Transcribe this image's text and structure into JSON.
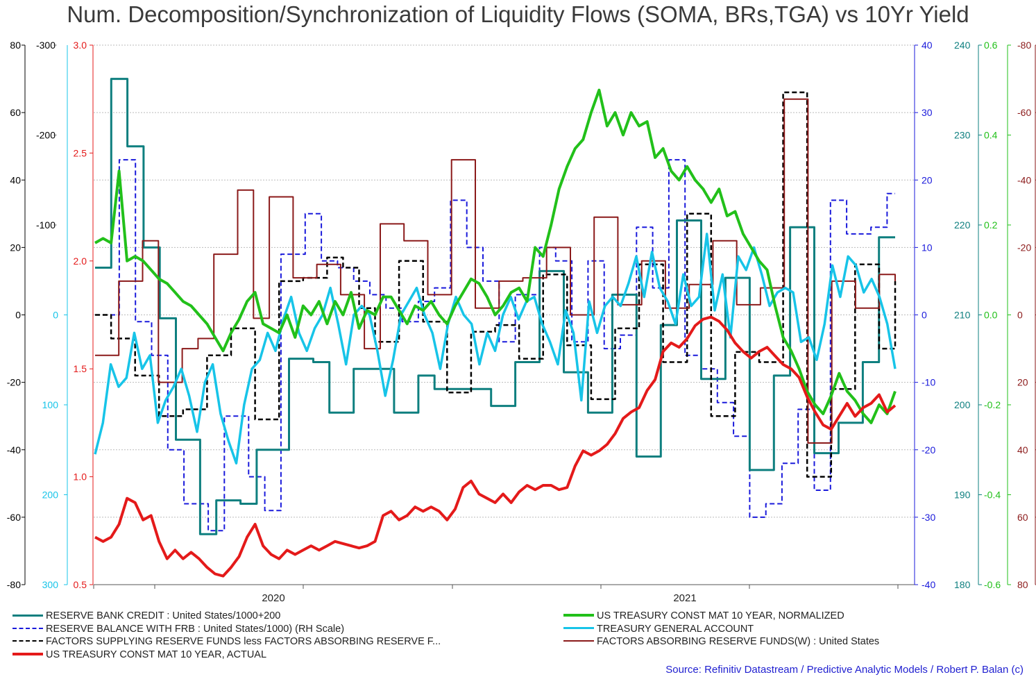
{
  "chart_data": {
    "type": "line",
    "title": "Num. Decomposition/Synchronization of Liquidity Flows (SOMA, BRs,TGA) vs 10Yr Yield",
    "source": "Source: Refinitiv Datastream / Predictive Analytic Models / Robert P. Balan (c)",
    "x_tick_labels": [
      "2020",
      "2021"
    ],
    "x_range_weeks": [
      0,
      100
    ],
    "gridlines": "horizontal dotted",
    "legend_placement": "bottom",
    "axes": [
      {
        "id": "ax_black",
        "side": "left",
        "color": "#000000",
        "min": -80,
        "max": 80,
        "ticks": [
          -80,
          -60,
          -40,
          -20,
          0,
          20,
          40,
          60,
          80
        ],
        "labels": [
          "-80",
          "-60",
          "-40",
          "-20",
          "0",
          "20",
          "40",
          "60",
          "80"
        ]
      },
      {
        "id": "ax_gray",
        "side": "left",
        "color": "#000000",
        "min": -300,
        "max": 300,
        "inverted": true,
        "ticks": [
          -300,
          -200,
          -100
        ],
        "labels": [
          "-300",
          "-200",
          "-100"
        ]
      },
      {
        "id": "ax_cyan",
        "side": "left",
        "color": "#17c4e8",
        "min": -300,
        "max": 300,
        "inverted": true,
        "ticks": [
          0,
          100,
          200,
          300
        ],
        "labels": [
          "0",
          "100",
          "200",
          "300"
        ]
      },
      {
        "id": "ax_red",
        "side": "left",
        "color": "#e41a1a",
        "min": 0.5,
        "max": 3.0,
        "ticks": [
          0.5,
          1.0,
          1.5,
          2.0,
          2.5,
          3.0
        ],
        "labels": [
          "0.5",
          "1.0",
          "1.5",
          "2.0",
          "2.5",
          "3.0"
        ]
      },
      {
        "id": "ax_blue",
        "side": "right",
        "color": "#1a1adb",
        "min": -40,
        "max": 40,
        "ticks": [
          -40,
          -30,
          -20,
          -10,
          0,
          10,
          20,
          30,
          40
        ],
        "labels": [
          "-40",
          "-30",
          "-20",
          "-10",
          "0",
          "10",
          "20",
          "30",
          "40"
        ]
      },
      {
        "id": "ax_teal",
        "side": "right",
        "color": "#0e7f7f",
        "min": 180,
        "max": 240,
        "ticks": [
          180,
          190,
          200,
          210,
          220,
          230,
          240
        ],
        "labels": [
          "180",
          "190",
          "200",
          "210",
          "220",
          "230",
          "240"
        ]
      },
      {
        "id": "ax_green",
        "side": "right",
        "color": "#22c01a",
        "min": -0.6,
        "max": 0.6,
        "ticks": [
          -0.6,
          -0.4,
          -0.2,
          0.0,
          0.2,
          0.4,
          0.6
        ],
        "labels": [
          "-0.6",
          "-0.4",
          "-0.2",
          "0.0",
          "0.2",
          "0.4",
          "0.6"
        ]
      },
      {
        "id": "ax_maroon",
        "side": "right",
        "color": "#8b1a1a",
        "min": -80,
        "max": 80,
        "inverted": true,
        "ticks": [
          -80,
          -60,
          -40,
          -20,
          0,
          20,
          40,
          60,
          80
        ],
        "labels": [
          "-80",
          "-60",
          "-40",
          "-20",
          "0",
          "20",
          "40",
          "60",
          "80"
        ]
      }
    ],
    "series": [
      {
        "name": "RESERVE BANK CREDIT : United States/1000+200",
        "axis": "ax_black",
        "color": "#0e7f7f",
        "style": "solid",
        "width": 3,
        "step": true,
        "values": [
          14,
          14,
          70,
          70,
          50,
          50,
          20,
          20,
          -1,
          -1,
          -37,
          -37,
          -37,
          -65,
          -65,
          -55,
          -55,
          -55,
          -56,
          -56,
          -40,
          -40,
          -40,
          -40,
          -13,
          -13,
          -13,
          -14,
          -14,
          -29,
          -29,
          -29,
          -16,
          -16,
          -16,
          -16,
          -16,
          -29,
          -29,
          -29,
          -18,
          -18,
          -22,
          -22,
          -22,
          -22,
          -22,
          -22,
          -22,
          -27,
          -27,
          -27,
          -14,
          -14,
          -14,
          13,
          13,
          13,
          -17,
          -17,
          -17,
          -29,
          -29,
          -29,
          6,
          6,
          6,
          -42,
          -42,
          -42,
          -3,
          -3,
          28,
          28,
          28,
          -19,
          -19,
          -19,
          11,
          11,
          11,
          -46,
          -46,
          -46,
          -18,
          -18,
          26,
          26,
          26,
          -41,
          -41,
          -41,
          -32,
          -32,
          -32,
          -14,
          -14,
          23,
          23,
          23
        ]
      },
      {
        "name": "RESERVE BALANCE WITH FRB : United States/1000) (RH Scale)",
        "axis": "ax_blue",
        "color": "#1a1adb",
        "style": "dashed",
        "width": 2,
        "step": true,
        "values": [
          0,
          0,
          0,
          23,
          23,
          -1,
          -1,
          -6,
          -6,
          -20,
          -20,
          -28,
          -28,
          -28,
          -32,
          -32,
          -15,
          -15,
          -15,
          -24,
          -24,
          -29,
          -29,
          9,
          9,
          9,
          15,
          15,
          8,
          8,
          7,
          7,
          5,
          5,
          3,
          3,
          1,
          1,
          -1,
          -1,
          2,
          2,
          4,
          4,
          17,
          17,
          10,
          10,
          5,
          5,
          -4,
          -4,
          3,
          3,
          3,
          10,
          10,
          8,
          8,
          -4,
          -4,
          8,
          8,
          -5,
          -5,
          -3,
          -3,
          13,
          13,
          4,
          4,
          23,
          23,
          -6,
          -6,
          -8,
          -8,
          -13,
          -13,
          -18,
          -18,
          -30,
          -30,
          -28,
          -28,
          -22,
          -22,
          -14,
          -14,
          -26,
          -26,
          17,
          17,
          12,
          12,
          12,
          13,
          13,
          18,
          18
        ]
      },
      {
        "name": "FACTORS SUPPLYING RESERVE FUNDS less FACTORS ABSORBING RESERVE F...",
        "axis": "ax_black",
        "color": "#000000",
        "style": "dashed",
        "width": 2.5,
        "step": true,
        "values": [
          0,
          0,
          -7,
          -7,
          -7,
          -18,
          -18,
          -18,
          -30,
          -30,
          -30,
          -28,
          -28,
          -28,
          -12,
          -12,
          -12,
          -4,
          -4,
          -4,
          -31,
          -31,
          -31,
          10,
          10,
          10,
          11,
          11,
          11,
          17,
          17,
          14,
          14,
          2,
          2,
          -8,
          -8,
          -8,
          16,
          16,
          16,
          -2,
          -2,
          -2,
          -23,
          -23,
          -23,
          -5,
          -5,
          -5,
          -3,
          -3,
          -3,
          -13,
          -13,
          -13,
          12,
          12,
          12,
          -9,
          -9,
          -9,
          -25,
          -25,
          -25,
          -4,
          -4,
          -4,
          15,
          15,
          15,
          -14,
          -14,
          -14,
          30,
          30,
          30,
          -30,
          -30,
          -30,
          -11,
          -11,
          -11,
          -14,
          -14,
          -14,
          66,
          66,
          66,
          -48,
          -48,
          -48,
          -22,
          -22,
          -22,
          15,
          15,
          15,
          -10,
          -10,
          10
        ]
      },
      {
        "name": "US TREASURY CONST MAT 10 YEAR, ACTUAL",
        "axis": "ax_red",
        "color": "#e41a1a",
        "style": "solid",
        "width": 4,
        "values": [
          0.72,
          0.7,
          0.72,
          0.78,
          0.9,
          0.88,
          0.8,
          0.82,
          0.7,
          0.62,
          0.66,
          0.62,
          0.65,
          0.62,
          0.58,
          0.55,
          0.54,
          0.58,
          0.63,
          0.72,
          0.78,
          0.68,
          0.64,
          0.62,
          0.66,
          0.64,
          0.66,
          0.68,
          0.66,
          0.68,
          0.7,
          0.69,
          0.68,
          0.67,
          0.68,
          0.7,
          0.82,
          0.84,
          0.8,
          0.82,
          0.86,
          0.84,
          0.86,
          0.84,
          0.8,
          0.85,
          0.95,
          0.98,
          0.92,
          0.9,
          0.88,
          0.92,
          0.88,
          0.93,
          0.96,
          0.94,
          0.96,
          0.96,
          0.94,
          0.95,
          1.05,
          1.12,
          1.1,
          1.12,
          1.15,
          1.2,
          1.27,
          1.3,
          1.32,
          1.4,
          1.45,
          1.58,
          1.62,
          1.6,
          1.64,
          1.7,
          1.73,
          1.74,
          1.72,
          1.68,
          1.62,
          1.58,
          1.55,
          1.58,
          1.6,
          1.56,
          1.52,
          1.5,
          1.46,
          1.37,
          1.3,
          1.24,
          1.22,
          1.28,
          1.34,
          1.28,
          1.32,
          1.34,
          1.38,
          1.3,
          1.33
        ]
      },
      {
        "name": "US TREASURY CONST MAT 10 YEAR, NORMALIZED",
        "axis": "ax_green",
        "color": "#22c01a",
        "style": "solid",
        "width": 4,
        "values": [
          0.16,
          0.17,
          0.16,
          0.32,
          0.12,
          0.13,
          0.12,
          0.1,
          0.08,
          0.07,
          0.05,
          0.03,
          0.02,
          0.0,
          -0.02,
          -0.05,
          -0.08,
          -0.04,
          -0.01,
          0.03,
          0.05,
          -0.02,
          -0.03,
          -0.04,
          0.0,
          -0.05,
          0.02,
          0.0,
          0.03,
          -0.02,
          0.03,
          0.0,
          0.05,
          -0.03,
          0.01,
          0.0,
          0.04,
          0.04,
          0.01,
          -0.02,
          0.02,
          0.01,
          0.03,
          0.0,
          -0.02,
          0.02,
          0.05,
          0.08,
          0.07,
          0.04,
          0.0,
          0.02,
          0.05,
          0.06,
          0.03,
          0.15,
          0.13,
          0.2,
          0.28,
          0.33,
          0.37,
          0.39,
          0.45,
          0.5,
          0.42,
          0.45,
          0.4,
          0.45,
          0.42,
          0.43,
          0.35,
          0.37,
          0.32,
          0.3,
          0.33,
          0.3,
          0.28,
          0.25,
          0.28,
          0.22,
          0.23,
          0.18,
          0.15,
          0.12,
          0.1,
          0.02,
          -0.05,
          -0.08,
          -0.12,
          -0.17,
          -0.2,
          -0.22,
          -0.18,
          -0.13,
          -0.17,
          -0.19,
          -0.22,
          -0.24,
          -0.2,
          -0.22,
          -0.17
        ]
      },
      {
        "name": "TREASURY GENERAL ACCOUNT",
        "axis": "ax_cyan",
        "color": "#17c4e8",
        "style": "solid",
        "width": 3.5,
        "values": [
          155,
          120,
          55,
          80,
          70,
          20,
          60,
          45,
          120,
          95,
          80,
          60,
          90,
          130,
          75,
          55,
          110,
          140,
          165,
          100,
          60,
          50,
          20,
          40,
          5,
          -20,
          20,
          40,
          15,
          0,
          -30,
          10,
          55,
          0,
          -10,
          0,
          40,
          90,
          50,
          0,
          -15,
          -30,
          0,
          20,
          60,
          10,
          -20,
          0,
          10,
          55,
          20,
          40,
          0,
          -20,
          5,
          -15,
          -20,
          10,
          30,
          55,
          -5,
          20,
          95,
          -15,
          20,
          -10,
          -20,
          -10,
          -35,
          -65,
          -20,
          -70,
          -30,
          -15,
          10,
          -45,
          -10,
          -20,
          -90,
          -5,
          -45,
          25,
          -65,
          -50,
          -75,
          -45,
          -10,
          -25,
          -30,
          -25,
          30,
          25,
          50,
          10,
          -55,
          -20,
          -65,
          -55,
          -25,
          -40,
          -20,
          10,
          60
        ]
      },
      {
        "name": "FACTORS ABSORBING RESERVE FUNDS(W) : United States",
        "axis": "ax_maroon",
        "color": "#8b1a1a",
        "style": "solid",
        "width": 2,
        "step": true,
        "values": [
          12,
          12,
          12,
          -10,
          -10,
          -10,
          -22,
          -22,
          20,
          20,
          20,
          10,
          10,
          7,
          7,
          -18,
          -18,
          -18,
          -37,
          -37,
          1,
          1,
          -35,
          -35,
          -35,
          -11,
          -11,
          -11,
          -15,
          -15,
          -15,
          -6,
          -6,
          -6,
          10,
          10,
          -27,
          -27,
          -27,
          -22,
          -22,
          -22,
          -6,
          -6,
          -6,
          -46,
          -46,
          -46,
          -2,
          -2,
          -2,
          -10,
          -10,
          -10,
          -11,
          -11,
          -11,
          -20,
          -20,
          -20,
          0,
          0,
          0,
          -29,
          -29,
          -29,
          -3,
          -3,
          -3,
          -16,
          -16,
          -16,
          -2,
          -2,
          -2,
          -9,
          -9,
          -9,
          -22,
          -22,
          -22,
          -3,
          -3,
          -3,
          -8,
          -8,
          -8,
          -64,
          -64,
          -64,
          38,
          38,
          38,
          -10,
          -10,
          -10,
          -2,
          -2,
          -2,
          -12,
          -12,
          -10
        ]
      }
    ],
    "legend": {
      "left": [
        "RESERVE BANK CREDIT : United States/1000+200",
        "RESERVE BALANCE WITH FRB : United States/1000) (RH Scale)",
        "FACTORS SUPPLYING RESERVE FUNDS less FACTORS ABSORBING RESERVE F...",
        "US TREASURY CONST MAT 10 YEAR, ACTUAL"
      ],
      "right": [
        "US TREASURY CONST MAT 10 YEAR, NORMALIZED",
        "TREASURY GENERAL ACCOUNT",
        "FACTORS ABSORBING RESERVE FUNDS(W) : United States"
      ]
    }
  }
}
